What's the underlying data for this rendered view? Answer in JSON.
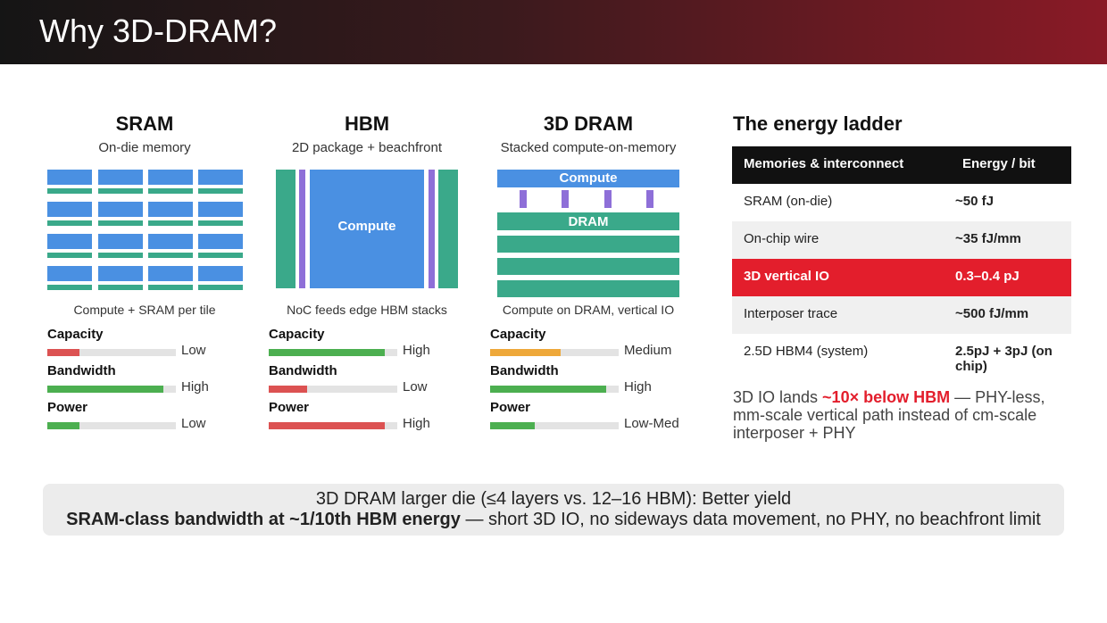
{
  "header": {
    "title": "Why 3D-DRAM?"
  },
  "columns": [
    {
      "title": "SRAM",
      "subtitle": "On-die memory",
      "caption": "Compute + SRAM per tile",
      "metrics": [
        {
          "name": "Capacity",
          "level": "Low",
          "fill": 25,
          "color": "#dc5252"
        },
        {
          "name": "Bandwidth",
          "level": "High",
          "fill": 90,
          "color": "#4caf50"
        },
        {
          "name": "Power",
          "level": "Low",
          "fill": 25,
          "color": "#4caf50"
        }
      ]
    },
    {
      "title": "HBM",
      "subtitle": "2D package + beachfront",
      "caption": "NoC feeds edge HBM stacks",
      "diagram": {
        "compute": "Compute"
      },
      "metrics": [
        {
          "name": "Capacity",
          "level": "High",
          "fill": 90,
          "color": "#4caf50"
        },
        {
          "name": "Bandwidth",
          "level": "Low",
          "fill": 30,
          "color": "#dc5252"
        },
        {
          "name": "Power",
          "level": "High",
          "fill": 90,
          "color": "#dc5252"
        }
      ]
    },
    {
      "title": "3D DRAM",
      "subtitle": "Stacked compute-on-memory",
      "caption": "Compute on DRAM, vertical IO",
      "diagram": {
        "compute": "Compute",
        "dram": "DRAM"
      },
      "metrics": [
        {
          "name": "Capacity",
          "level": "Medium",
          "fill": 55,
          "color": "#eea83a"
        },
        {
          "name": "Bandwidth",
          "level": "High",
          "fill": 90,
          "color": "#4caf50"
        },
        {
          "name": "Power",
          "level": "Low-Med",
          "fill": 35,
          "color": "#4caf50"
        }
      ]
    }
  ],
  "energy": {
    "title": "The energy ladder",
    "header": [
      "Memories & interconnect",
      "Energy / bit"
    ],
    "rows": [
      [
        "SRAM (on-die)",
        "~50 fJ"
      ],
      [
        "On-chip wire",
        "~35 fJ/mm"
      ],
      [
        "3D vertical IO",
        "0.3–0.4 pJ"
      ],
      [
        "Interposer trace",
        "~500 fJ/mm"
      ],
      [
        "2.5D HBM4 (system)",
        "2.5pJ + 3pJ (on chip)"
      ]
    ],
    "highlight_row": 2,
    "note": [
      "3D IO lands ",
      "~10× below HBM",
      " — PHY-less, mm-scale vertical path instead of cm-scale interposer + PHY"
    ]
  },
  "footer": {
    "line1": "3D DRAM larger die (≤4 layers vs. 12–16 HBM): Better yield",
    "line2_bold": "SRAM-class bandwidth at ~1/10th HBM energy",
    "line2_rest": " — short 3D IO, no sideways data movement, no PHY, no beachfront limit"
  }
}
